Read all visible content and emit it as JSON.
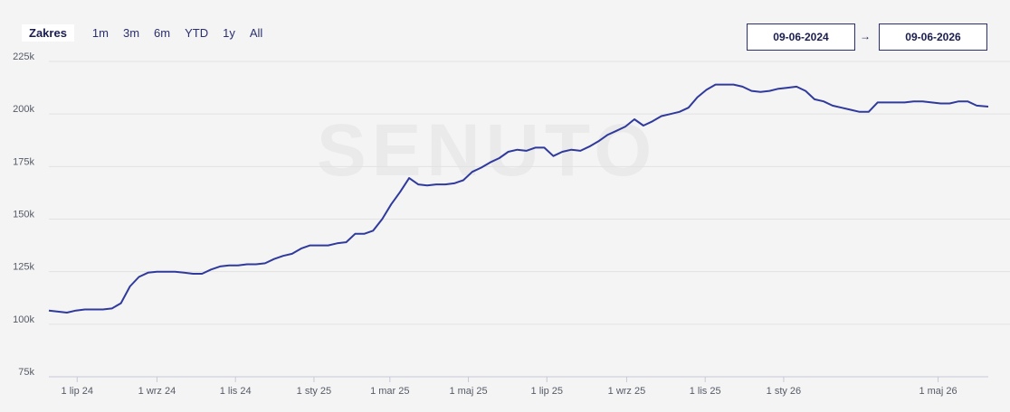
{
  "range": {
    "label": "Zakres",
    "buttons": [
      "1m",
      "3m",
      "6m",
      "YTD",
      "1y",
      "All"
    ]
  },
  "date_range": {
    "from": "09-06-2024",
    "arrow": "→",
    "to": "09-06-2026"
  },
  "watermark": "SENUTO",
  "colors": {
    "line": "#2f3a9c",
    "grid": "#e2e2e2",
    "axis": "#c7c9d9"
  },
  "chart_data": {
    "type": "line",
    "title": "",
    "xlabel": "",
    "ylabel": "",
    "x_range": [
      "2024-06-09",
      "2026-06-09"
    ],
    "ylim": [
      75000,
      225000
    ],
    "y_ticks": [
      {
        "value": 225000,
        "label": "225k"
      },
      {
        "value": 200000,
        "label": "200k"
      },
      {
        "value": 175000,
        "label": "175k"
      },
      {
        "value": 150000,
        "label": "150k"
      },
      {
        "value": 125000,
        "label": "125k"
      },
      {
        "value": 100000,
        "label": "100k"
      },
      {
        "value": 75000,
        "label": "75k"
      }
    ],
    "x_ticks": [
      {
        "date": "2024-07-01",
        "label": "1 lip 24"
      },
      {
        "date": "2024-09-01",
        "label": "1 wrz 24"
      },
      {
        "date": "2024-11-01",
        "label": "1 lis 24"
      },
      {
        "date": "2025-01-01",
        "label": "1 sty 25"
      },
      {
        "date": "2025-03-01",
        "label": "1 mar 25"
      },
      {
        "date": "2025-05-01",
        "label": "1 maj 25"
      },
      {
        "date": "2025-07-01",
        "label": "1 lip 25"
      },
      {
        "date": "2025-09-01",
        "label": "1 wrz 25"
      },
      {
        "date": "2025-11-01",
        "label": "1 lis 25"
      },
      {
        "date": "2026-01-01",
        "label": "1 sty 26"
      },
      {
        "date": "2026-05-01",
        "label": "1 maj 26"
      }
    ],
    "grid": true,
    "legend": "none",
    "series": [
      {
        "points": [
          [
            "2024-06-09",
            106500
          ],
          [
            "2024-06-16",
            106000
          ],
          [
            "2024-06-23",
            105500
          ],
          [
            "2024-06-30",
            106500
          ],
          [
            "2024-07-07",
            107000
          ],
          [
            "2024-07-14",
            107000
          ],
          [
            "2024-07-21",
            107000
          ],
          [
            "2024-07-28",
            107500
          ],
          [
            "2024-08-04",
            110000
          ],
          [
            "2024-08-11",
            118000
          ],
          [
            "2024-08-18",
            122500
          ],
          [
            "2024-08-25",
            124500
          ],
          [
            "2024-09-01",
            125000
          ],
          [
            "2024-09-08",
            125000
          ],
          [
            "2024-09-15",
            125000
          ],
          [
            "2024-09-22",
            124500
          ],
          [
            "2024-09-29",
            124000
          ],
          [
            "2024-10-06",
            124000
          ],
          [
            "2024-10-13",
            126000
          ],
          [
            "2024-10-20",
            127500
          ],
          [
            "2024-10-27",
            128000
          ],
          [
            "2024-11-03",
            128000
          ],
          [
            "2024-11-10",
            128500
          ],
          [
            "2024-11-17",
            128500
          ],
          [
            "2024-11-24",
            129000
          ],
          [
            "2024-12-01",
            131000
          ],
          [
            "2024-12-08",
            132500
          ],
          [
            "2024-12-15",
            133500
          ],
          [
            "2024-12-22",
            136000
          ],
          [
            "2024-12-29",
            137500
          ],
          [
            "2025-01-05",
            137500
          ],
          [
            "2025-01-12",
            137500
          ],
          [
            "2025-01-19",
            138500
          ],
          [
            "2025-01-26",
            139000
          ],
          [
            "2025-02-02",
            143000
          ],
          [
            "2025-02-09",
            143000
          ],
          [
            "2025-02-16",
            144500
          ],
          [
            "2025-02-23",
            150000
          ],
          [
            "2025-03-02",
            157000
          ],
          [
            "2025-03-09",
            163000
          ],
          [
            "2025-03-16",
            169500
          ],
          [
            "2025-03-23",
            166500
          ],
          [
            "2025-03-30",
            166000
          ],
          [
            "2025-04-06",
            166500
          ],
          [
            "2025-04-13",
            166500
          ],
          [
            "2025-04-20",
            167000
          ],
          [
            "2025-04-27",
            168500
          ],
          [
            "2025-05-04",
            172500
          ],
          [
            "2025-05-11",
            174500
          ],
          [
            "2025-05-18",
            177000
          ],
          [
            "2025-05-25",
            179000
          ],
          [
            "2025-06-01",
            182000
          ],
          [
            "2025-06-08",
            183000
          ],
          [
            "2025-06-15",
            182500
          ],
          [
            "2025-06-22",
            184000
          ],
          [
            "2025-06-29",
            184000
          ],
          [
            "2025-07-06",
            180000
          ],
          [
            "2025-07-13",
            182000
          ],
          [
            "2025-07-20",
            183000
          ],
          [
            "2025-07-27",
            182500
          ],
          [
            "2025-08-03",
            184500
          ],
          [
            "2025-08-10",
            187000
          ],
          [
            "2025-08-17",
            190000
          ],
          [
            "2025-08-24",
            192000
          ],
          [
            "2025-08-31",
            194000
          ],
          [
            "2025-09-07",
            197500
          ],
          [
            "2025-09-14",
            194500
          ],
          [
            "2025-09-21",
            196500
          ],
          [
            "2025-09-28",
            199000
          ],
          [
            "2025-10-05",
            200000
          ],
          [
            "2025-10-12",
            201000
          ],
          [
            "2025-10-19",
            203000
          ],
          [
            "2025-10-26",
            208000
          ],
          [
            "2025-11-02",
            211500
          ],
          [
            "2025-11-09",
            214000
          ],
          [
            "2025-11-16",
            214000
          ],
          [
            "2025-11-23",
            214000
          ],
          [
            "2025-11-30",
            213000
          ],
          [
            "2025-12-07",
            211000
          ],
          [
            "2025-12-14",
            210500
          ],
          [
            "2025-12-21",
            211000
          ],
          [
            "2025-12-28",
            212000
          ],
          [
            "2026-01-04",
            212500
          ],
          [
            "2026-01-11",
            213000
          ],
          [
            "2026-01-18",
            211000
          ],
          [
            "2026-01-25",
            207000
          ],
          [
            "2026-02-01",
            206000
          ],
          [
            "2026-02-08",
            204000
          ],
          [
            "2026-02-15",
            203000
          ],
          [
            "2026-02-22",
            202000
          ],
          [
            "2026-03-01",
            201000
          ],
          [
            "2026-03-08",
            201000
          ],
          [
            "2026-03-15",
            205500
          ],
          [
            "2026-03-22",
            205500
          ],
          [
            "2026-03-29",
            205500
          ],
          [
            "2026-04-05",
            205500
          ],
          [
            "2026-04-12",
            206000
          ],
          [
            "2026-04-19",
            206000
          ],
          [
            "2026-04-26",
            205500
          ],
          [
            "2026-05-03",
            205000
          ],
          [
            "2026-05-10",
            205000
          ],
          [
            "2026-05-17",
            206000
          ],
          [
            "2026-05-24",
            206000
          ],
          [
            "2026-05-31",
            204000
          ],
          [
            "2026-06-09",
            203500
          ]
        ]
      }
    ]
  }
}
